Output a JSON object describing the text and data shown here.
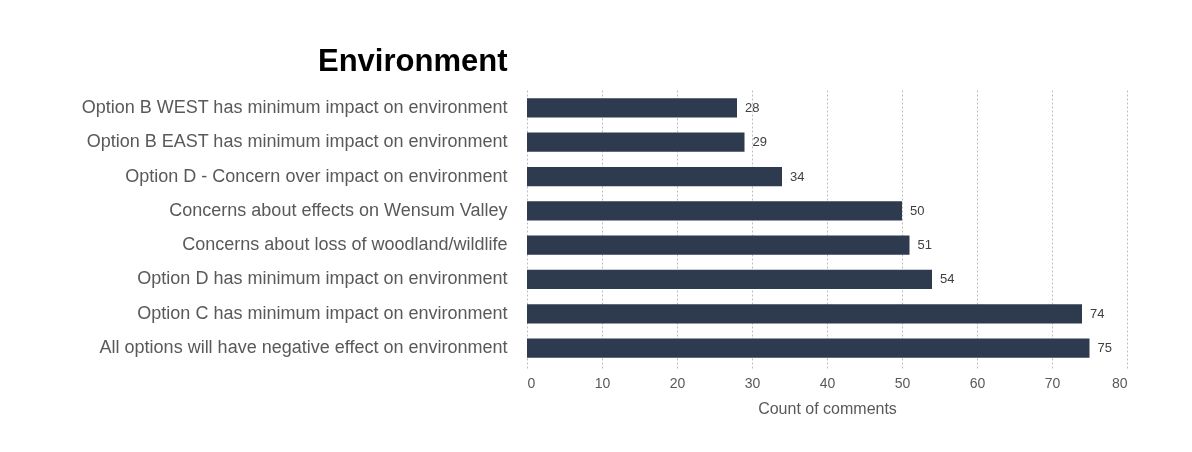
{
  "chart_data": {
    "type": "bar",
    "orientation": "horizontal",
    "title": "Environment",
    "xlabel": "Count of comments",
    "categories": [
      "Option B WEST has minimum impact on environment",
      "Option B EAST has minimum impact on environment",
      "Option D - Concern over impact on environment",
      "Concerns about effects on Wensum Valley",
      "Concerns about loss of woodland/wildlife",
      "Option D has minimum impact on environment",
      "Option C has minimum impact on environment",
      "All options will have negative effect on environment"
    ],
    "values": [
      28,
      29,
      34,
      50,
      51,
      54,
      74,
      75
    ],
    "color": "#2e3a4d",
    "xlim": [
      0,
      80
    ],
    "xticks": [
      0,
      10,
      20,
      30,
      40,
      50,
      60,
      70,
      80
    ],
    "grid": "x",
    "data_labels": true
  }
}
